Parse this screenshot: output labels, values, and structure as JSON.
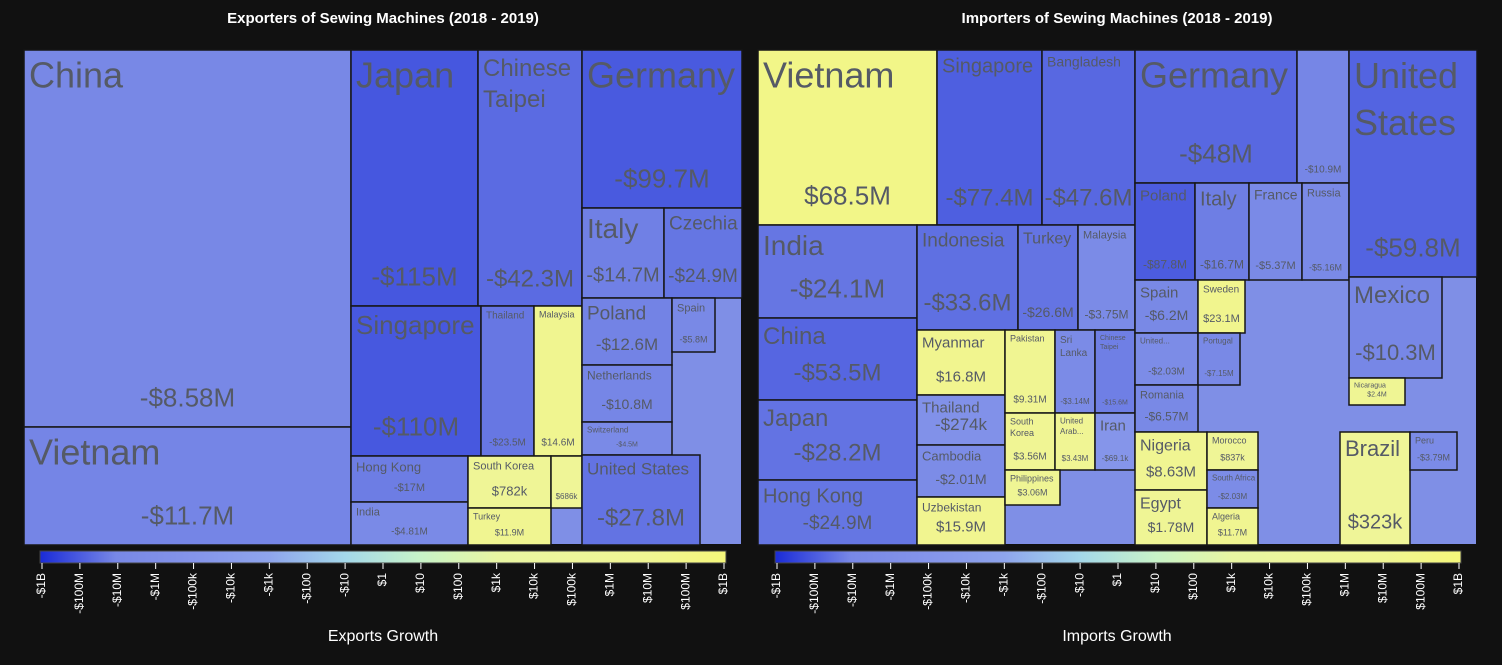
{
  "chart_data": [
    {
      "type": "treemap",
      "title": "Exporters of Sewing Machines (2018 - 2019)",
      "colorbar_title": "Exports Growth",
      "names": [
        "China",
        "Vietnam",
        "Japan",
        "Chinese Taipei",
        "Singapore",
        "Thailand",
        "Malaysia",
        "Hong Kong",
        "India",
        "South Korea",
        null,
        "Turkey",
        "Germany",
        "Italy",
        "Czechia",
        "Poland",
        "Spain",
        "Netherlands",
        "Switzerland",
        "United States"
      ],
      "values": [
        -8580000,
        -11700000,
        -115000000,
        -42300000,
        -110000000,
        -23500000,
        14600000,
        -17000000,
        -4810000,
        782000,
        686000,
        11900000,
        -99700000,
        -14700000,
        -24900000,
        -12600000,
        -5800000,
        -10800000,
        -4500000,
        -27800000
      ],
      "value_labels": [
        "-$8.58M",
        "-$11.7M",
        "-$115M",
        "-$42.3M",
        "-$110M",
        "-$23.5M",
        "$14.6M",
        "-$17M",
        "-$4.81M",
        "$782k",
        "$686k",
        "$11.9M",
        "-$99.7M",
        "-$14.7M",
        "-$24.9M",
        "-$12.6M",
        "-$5.8M",
        "-$10.8M",
        "-$4.5M",
        "-$27.8M"
      ],
      "scale": "symlog",
      "clim": [
        -1000000000,
        1000000000
      ],
      "colorscale": [
        "#1a2bd8",
        "#7888e6",
        "#8494ea",
        "#8ea4ec",
        "#a4d8ea",
        "#c8f3c8",
        "#e8f5a2",
        "#eef59a",
        "#f0f592",
        "#f5f77a"
      ],
      "colorbar_ticks": [
        {
          "value": -1000000000,
          "label": "-$1B"
        },
        {
          "value": -100000000,
          "label": "-$100M"
        },
        {
          "value": -10000000,
          "label": "-$10M"
        },
        {
          "value": -1000000,
          "label": "-$1M"
        },
        {
          "value": -100000,
          "label": "-$100k"
        },
        {
          "value": -10000,
          "label": "-$10k"
        },
        {
          "value": -1000,
          "label": "-$1k"
        },
        {
          "value": -100,
          "label": "-$100"
        },
        {
          "value": -10,
          "label": "-$10"
        },
        {
          "value": 1,
          "label": "$1"
        },
        {
          "value": 10,
          "label": "$10"
        },
        {
          "value": 100,
          "label": "$100"
        },
        {
          "value": 1000,
          "label": "$1k"
        },
        {
          "value": 10000,
          "label": "$10k"
        },
        {
          "value": 100000,
          "label": "$100k"
        },
        {
          "value": 1000000,
          "label": "$1M"
        },
        {
          "value": 10000000,
          "label": "$10M"
        },
        {
          "value": 100000000,
          "label": "$100M"
        },
        {
          "value": 1000000000,
          "label": "$1B"
        }
      ]
    },
    {
      "type": "treemap",
      "title": "Importers of Sewing Machines (2018 - 2019)",
      "colorbar_title": "Imports Growth",
      "names": [
        "Vietnam",
        "Singapore",
        "Bangladesh",
        "India",
        "China",
        "Japan",
        "Hong Kong",
        "Indonesia",
        "Turkey",
        "Malaysia",
        "Myanmar",
        "Thailand",
        "Cambodia",
        "Uzbekistan",
        "Pakistan",
        "Sri Lanka",
        "Chinese Taipei",
        "South Korea",
        "United Arab...",
        "Iran",
        "Philippines",
        "Germany",
        null,
        "Poland",
        "Italy",
        "France",
        "Russia",
        "Spain",
        "Sweden",
        "United...",
        "Portugal",
        "Romania",
        "United States",
        "Mexico",
        "Nicaragua",
        "Nigeria",
        "Egypt",
        "Morocco",
        "South Africa",
        "Algeria",
        "Brazil",
        "Peru"
      ],
      "values": [
        68500000,
        -77400000,
        -47600000,
        -24100000,
        -53500000,
        -28200000,
        -24900000,
        -33600000,
        -26600000,
        -3750000,
        16800000,
        -274000,
        -2010000,
        15900000,
        9310000,
        -3140000,
        -15600000,
        3560000,
        3430000,
        -69100,
        3060000,
        -48000000,
        -10900000,
        -87800000,
        -16700000,
        -5370000,
        -5160000,
        -6200000,
        23100000,
        -2030000,
        -7150000,
        -6570000,
        -59800000,
        -10300000,
        2400000,
        8630000,
        1780000,
        837000,
        -2030000,
        11700000,
        323000,
        -3790000
      ],
      "value_labels": [
        "$68.5M",
        "-$77.4M",
        "-$47.6M",
        "-$24.1M",
        "-$53.5M",
        "-$28.2M",
        "-$24.9M",
        "-$33.6M",
        "-$26.6M",
        "-$3.75M",
        "$16.8M",
        "-$274k",
        "-$2.01M",
        "$15.9M",
        "$9.31M",
        "-$3.14M",
        "-$15.6M",
        "$3.56M",
        "$3.43M",
        "-$69.1k",
        "$3.06M",
        "-$48M",
        "-$10.9M",
        "-$87.8M",
        "-$16.7M",
        "-$5.37M",
        "-$5.16M",
        "-$6.2M",
        "$23.1M",
        "-$2.03M",
        "-$7.15M",
        "-$6.57M",
        "-$59.8M",
        "-$10.3M",
        "$2.4M",
        "$8.63M",
        "$1.78M",
        "$837k",
        "-$2.03M",
        "$11.7M",
        "$323k",
        "-$3.79M"
      ],
      "scale": "symlog",
      "clim": [
        -1000000000,
        1000000000
      ],
      "colorscale": [
        "#1a2bd8",
        "#7888e6",
        "#8494ea",
        "#8ea4ec",
        "#a4d8ea",
        "#c8f3c8",
        "#e8f5a2",
        "#eef59a",
        "#f0f592",
        "#f5f77a"
      ],
      "colorbar_ticks": [
        {
          "value": -1000000000,
          "label": "-$1B"
        },
        {
          "value": -100000000,
          "label": "-$100M"
        },
        {
          "value": -10000000,
          "label": "-$10M"
        },
        {
          "value": -1000000,
          "label": "-$1M"
        },
        {
          "value": -100000,
          "label": "-$100k"
        },
        {
          "value": -10000,
          "label": "-$10k"
        },
        {
          "value": -1000,
          "label": "-$1k"
        },
        {
          "value": -100,
          "label": "-$100"
        },
        {
          "value": -10,
          "label": "-$10"
        },
        {
          "value": 1,
          "label": "$1"
        },
        {
          "value": 10,
          "label": "$10"
        },
        {
          "value": 100,
          "label": "$100"
        },
        {
          "value": 1000,
          "label": "$1k"
        },
        {
          "value": 10000,
          "label": "$10k"
        },
        {
          "value": 100000,
          "label": "$100k"
        },
        {
          "value": 1000000,
          "label": "$1M"
        },
        {
          "value": 10000000,
          "label": "$10M"
        },
        {
          "value": 100000000,
          "label": "$100M"
        },
        {
          "value": 1000000000,
          "label": "$1B"
        }
      ]
    }
  ]
}
